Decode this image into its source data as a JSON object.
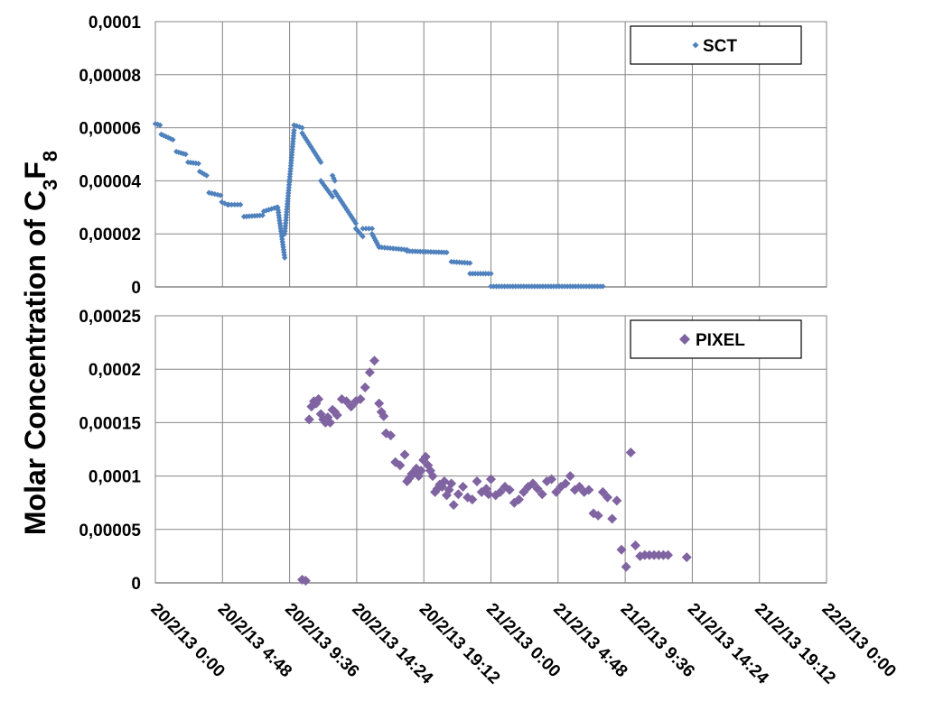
{
  "chart_data": {
    "type": "scatter",
    "ylabel_main": "Molar Concentration of C",
    "ylabel_sub1": "3",
    "ylabel_mid": "F",
    "ylabel_sub2": "8",
    "x_tick_labels": [
      "20/2/13 0:00",
      "20/2/13 4:48",
      "20/2/13 9:36",
      "20/2/13 14:24",
      "20/2/13 19:12",
      "21/2/13 0:00",
      "21/2/13 4:48",
      "21/2/13 9:36",
      "21/2/13 14:24",
      "21/2/13 19:12",
      "22/2/13 0:00"
    ],
    "grid": true,
    "panels": [
      {
        "series_name": "SCT",
        "legend_position": "top-right",
        "marker": "small-diamond",
        "color": "#4F81BD",
        "ylim": [
          0,
          0.0001
        ],
        "y_tick_labels": [
          "0",
          "0,00002",
          "0,00004",
          "0,00006",
          "0,00008",
          "0,0001"
        ],
        "segments": [
          {
            "x": [
              "20/2/13 0:00",
              "20/2/13 0:20"
            ],
            "y": [
              6.15e-05,
              6.1e-05
            ]
          },
          {
            "x": [
              "20/2/13 0:25",
              "20/2/13 1:15"
            ],
            "y": [
              5.75e-05,
              5.55e-05
            ]
          },
          {
            "x": [
              "20/2/13 1:30",
              "20/2/13 2:10"
            ],
            "y": [
              5.1e-05,
              5e-05
            ]
          },
          {
            "x": [
              "20/2/13 2:20",
              "20/2/13 3:05"
            ],
            "y": [
              4.7e-05,
              4.65e-05
            ]
          },
          {
            "x": [
              "20/2/13 3:10",
              "20/2/13 3:40"
            ],
            "y": [
              4.35e-05,
              4.2e-05
            ]
          },
          {
            "x": [
              "20/2/13 3:50",
              "20/2/13 4:40"
            ],
            "y": [
              3.55e-05,
              3.45e-05
            ]
          },
          {
            "x": [
              "20/2/13 4:45",
              "20/2/13 5:10"
            ],
            "y": [
              3.2e-05,
              3.1e-05
            ]
          },
          {
            "x": [
              "20/2/13 5:15",
              "20/2/13 6:05"
            ],
            "y": [
              3.1e-05,
              3.1e-05
            ]
          },
          {
            "x": [
              "20/2/13 6:20",
              "20/2/13 7:40"
            ],
            "y": [
              2.65e-05,
              2.7e-05
            ]
          },
          {
            "x": [
              "20/2/13 7:45",
              "20/2/13 8:40"
            ],
            "y": [
              2.85e-05,
              3e-05
            ]
          },
          {
            "x": [
              "20/2/13 8:45",
              "20/2/13 9:15"
            ],
            "y": [
              3e-05,
              1.1e-05
            ]
          },
          {
            "x": [
              "20/2/13 9:15",
              "20/2/13 9:55"
            ],
            "y": [
              2e-05,
              5.9e-05
            ]
          },
          {
            "x": [
              "20/2/13 9:55",
              "20/2/13 10:30"
            ],
            "y": [
              6.1e-05,
              6e-05
            ]
          },
          {
            "x": [
              "20/2/13 10:30",
              "20/2/13 11:50"
            ],
            "y": [
              5.8e-05,
              4.7e-05
            ]
          },
          {
            "x": [
              "20/2/13 11:50",
              "20/2/13 12:40"
            ],
            "y": [
              4e-05,
              3.4e-05
            ]
          },
          {
            "x": [
              "20/2/13 12:40",
              "20/2/13 12:50"
            ],
            "y": [
              4.2e-05,
              4e-05
            ]
          },
          {
            "x": [
              "20/2/13 12:50",
              "20/2/13 14:20"
            ],
            "y": [
              3.6e-05,
              2.4e-05
            ]
          },
          {
            "x": [
              "20/2/13 14:20",
              "20/2/13 14:50"
            ],
            "y": [
              2.2e-05,
              1.9e-05
            ]
          },
          {
            "x": [
              "20/2/13 14:50",
              "20/2/13 15:30"
            ],
            "y": [
              2.2e-05,
              2.2e-05
            ]
          },
          {
            "x": [
              "20/2/13 15:30",
              "20/2/13 16:00"
            ],
            "y": [
              2e-05,
              1.5e-05
            ]
          },
          {
            "x": [
              "20/2/13 16:00",
              "20/2/13 18:00"
            ],
            "y": [
              1.5e-05,
              1.4e-05
            ]
          },
          {
            "x": [
              "20/2/13 18:00",
              "20/2/13 20:50"
            ],
            "y": [
              1.35e-05,
              1.3e-05
            ]
          },
          {
            "x": [
              "20/2/13 21:10",
              "20/2/13 22:30"
            ],
            "y": [
              9.5e-06,
              9e-06
            ]
          },
          {
            "x": [
              "20/2/13 22:30",
              "21/2/13 0:00"
            ],
            "y": [
              5e-06,
              5e-06
            ]
          },
          {
            "x": [
              "21/2/13 0:00",
              "21/2/13 8:00"
            ],
            "y": [
              2e-07,
              2e-07
            ]
          }
        ]
      },
      {
        "series_name": "PIXEL",
        "legend_position": "top-right",
        "marker": "diamond",
        "color": "#8064A2",
        "ylim": [
          0,
          0.00025
        ],
        "y_tick_labels": [
          "0",
          "0,00005",
          "0,0001",
          "0,00015",
          "0,0002",
          "0,00025"
        ],
        "x": [
          "20/2/13 10:30",
          "20/2/13 10:45",
          "20/2/13 11:00",
          "20/2/13 11:10",
          "20/2/13 11:20",
          "20/2/13 11:30",
          "20/2/13 11:40",
          "20/2/13 11:50",
          "20/2/13 12:00",
          "20/2/13 12:10",
          "20/2/13 12:20",
          "20/2/13 12:30",
          "20/2/13 12:40",
          "20/2/13 12:50",
          "20/2/13 13:00",
          "20/2/13 13:20",
          "20/2/13 13:40",
          "20/2/13 14:00",
          "20/2/13 14:20",
          "20/2/13 14:40",
          "20/2/13 15:00",
          "20/2/13 15:20",
          "20/2/13 15:40",
          "20/2/13 16:00",
          "20/2/13 16:10",
          "20/2/13 16:20",
          "20/2/13 16:30",
          "20/2/13 16:50",
          "20/2/13 17:10",
          "20/2/13 17:30",
          "20/2/13 17:50",
          "20/2/13 18:00",
          "20/2/13 18:10",
          "20/2/13 18:20",
          "20/2/13 18:30",
          "20/2/13 18:40",
          "20/2/13 18:50",
          "20/2/13 19:00",
          "20/2/13 19:10",
          "20/2/13 19:20",
          "20/2/13 19:30",
          "20/2/13 19:40",
          "20/2/13 19:50",
          "20/2/13 20:00",
          "20/2/13 20:10",
          "20/2/13 20:20",
          "20/2/13 20:30",
          "20/2/13 20:40",
          "20/2/13 20:50",
          "20/2/13 21:00",
          "20/2/13 21:10",
          "20/2/13 21:20",
          "20/2/13 21:40",
          "20/2/13 22:00",
          "20/2/13 22:20",
          "20/2/13 22:40",
          "20/2/13 23:00",
          "20/2/13 23:20",
          "20/2/13 23:40",
          "20/2/13 23:50",
          "21/2/13 0:00",
          "21/2/13 0:20",
          "21/2/13 0:40",
          "21/2/13 1:00",
          "21/2/13 1:20",
          "21/2/13 1:40",
          "21/2/13 2:00",
          "21/2/13 2:20",
          "21/2/13 2:40",
          "21/2/13 3:00",
          "21/2/13 3:20",
          "21/2/13 3:40",
          "21/2/13 4:00",
          "21/2/13 4:20",
          "21/2/13 4:40",
          "21/2/13 5:00",
          "21/2/13 5:20",
          "21/2/13 5:40",
          "21/2/13 6:00",
          "21/2/13 6:20",
          "21/2/13 6:40",
          "21/2/13 7:00",
          "21/2/13 7:20",
          "21/2/13 7:40",
          "21/2/13 8:00",
          "21/2/13 8:20",
          "21/2/13 8:40",
          "21/2/13 9:00",
          "21/2/13 9:20",
          "21/2/13 9:40",
          "21/2/13 10:00",
          "21/2/13 10:20",
          "21/2/13 10:40",
          "21/2/13 11:00",
          "21/2/13 11:20",
          "21/2/13 11:40",
          "21/2/13 12:00",
          "21/2/13 12:20",
          "21/2/13 12:40",
          "21/2/13 14:00"
        ],
        "y": [
          3e-06,
          2e-06,
          0.000153,
          0.000165,
          0.00017,
          0.000168,
          0.000172,
          0.000158,
          0.000153,
          0.00015,
          0.000155,
          0.00015,
          0.000162,
          0.00016,
          0.000157,
          0.000172,
          0.00017,
          0.000165,
          0.00017,
          0.000172,
          0.000183,
          0.000197,
          0.000208,
          0.000168,
          0.00016,
          0.000156,
          0.00014,
          0.000138,
          0.000113,
          0.00011,
          0.00012,
          9.5e-05,
          9.8e-05,
          0.000102,
          0.000103,
          0.000107,
          0.0001,
          0.000105,
          0.000115,
          0.000118,
          0.00011,
          0.000105,
          0.0001,
          8.5e-05,
          8.8e-05,
          9.2e-05,
          9e-05,
          9.5e-05,
          8.2e-05,
          8.7e-05,
          9.3e-05,
          7.3e-05,
          8.3e-05,
          9e-05,
          8e-05,
          7.8e-05,
          9.5e-05,
          8.5e-05,
          8.8e-05,
          8.3e-05,
          9.7e-05,
          8.2e-05,
          8.5e-05,
          9e-05,
          8.7e-05,
          7.5e-05,
          7.8e-05,
          8.5e-05,
          9e-05,
          9.3e-05,
          8.8e-05,
          8.3e-05,
          9.5e-05,
          9.7e-05,
          8.5e-05,
          9e-05,
          9.3e-05,
          0.0001,
          8.7e-05,
          9e-05,
          8.5e-05,
          8.7e-05,
          6.5e-05,
          6.3e-05,
          8.5e-05,
          8e-05,
          6e-05,
          7.7e-05,
          3.1e-05,
          1.5e-05,
          0.000122,
          3.5e-05,
          2.5e-05,
          2.6e-05,
          2.6e-05,
          2.6e-05,
          2.6e-05,
          2.6e-05,
          2.6e-05,
          2.4e-05
        ]
      }
    ]
  }
}
